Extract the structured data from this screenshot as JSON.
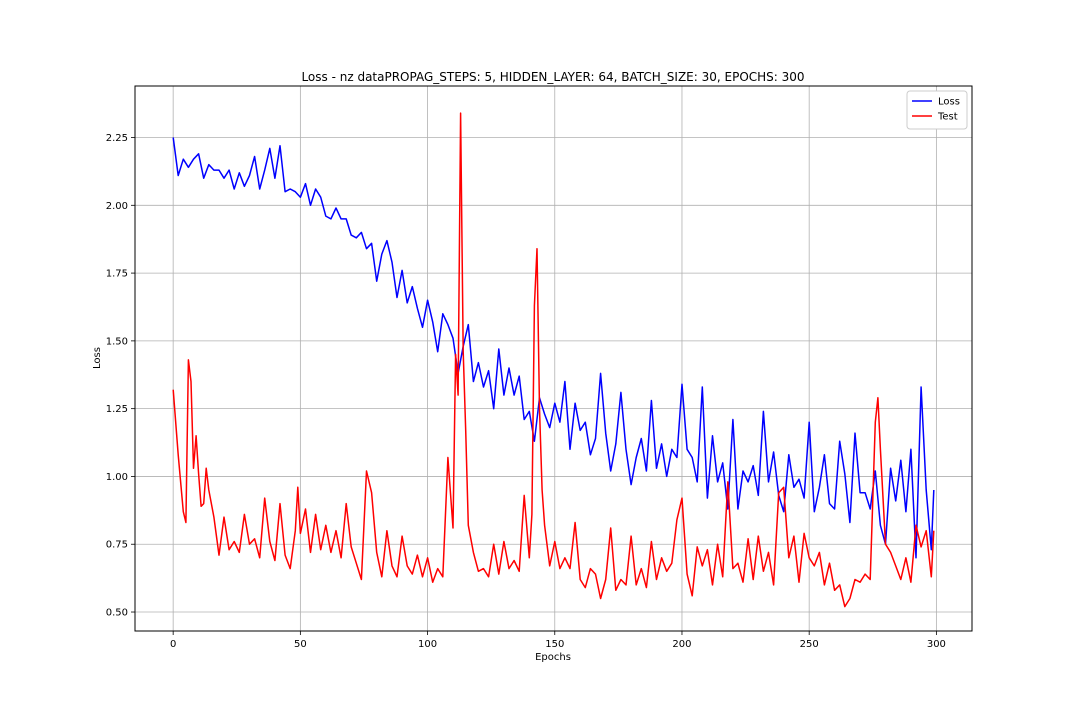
{
  "chart_data": {
    "type": "line",
    "title": "Loss - nz dataPROPAG_STEPS: 5, HIDDEN_LAYER: 64, BATCH_SIZE: 30, EPOCHS: 300",
    "xlabel": "Epochs",
    "ylabel": "Loss",
    "xlim": [
      -15,
      314
    ],
    "ylim": [
      0.43,
      2.44
    ],
    "xticks": [
      0,
      50,
      100,
      150,
      200,
      250,
      300
    ],
    "yticks": [
      0.5,
      0.75,
      1.0,
      1.25,
      1.5,
      1.75,
      2.0,
      2.25
    ],
    "xtick_labels": [
      "0",
      "50",
      "100",
      "150",
      "200",
      "250",
      "300"
    ],
    "ytick_labels": [
      "0.50",
      "0.75",
      "1.00",
      "1.25",
      "1.50",
      "1.75",
      "2.00",
      "2.25"
    ],
    "grid": true,
    "legend_position": "top-right",
    "series": [
      {
        "name": "Loss",
        "color": "#0000ff",
        "points": [
          [
            0,
            2.25
          ],
          [
            2,
            2.11
          ],
          [
            4,
            2.17
          ],
          [
            6,
            2.14
          ],
          [
            8,
            2.17
          ],
          [
            10,
            2.19
          ],
          [
            12,
            2.1
          ],
          [
            14,
            2.15
          ],
          [
            16,
            2.13
          ],
          [
            18,
            2.13
          ],
          [
            20,
            2.1
          ],
          [
            22,
            2.13
          ],
          [
            24,
            2.06
          ],
          [
            26,
            2.12
          ],
          [
            28,
            2.07
          ],
          [
            30,
            2.11
          ],
          [
            32,
            2.18
          ],
          [
            34,
            2.06
          ],
          [
            36,
            2.13
          ],
          [
            38,
            2.21
          ],
          [
            40,
            2.1
          ],
          [
            42,
            2.22
          ],
          [
            44,
            2.05
          ],
          [
            46,
            2.06
          ],
          [
            48,
            2.05
          ],
          [
            50,
            2.03
          ],
          [
            52,
            2.08
          ],
          [
            54,
            2.0
          ],
          [
            56,
            2.06
          ],
          [
            58,
            2.03
          ],
          [
            60,
            1.96
          ],
          [
            62,
            1.95
          ],
          [
            64,
            1.99
          ],
          [
            66,
            1.95
          ],
          [
            68,
            1.95
          ],
          [
            70,
            1.89
          ],
          [
            72,
            1.88
          ],
          [
            74,
            1.9
          ],
          [
            76,
            1.84
          ],
          [
            78,
            1.86
          ],
          [
            80,
            1.72
          ],
          [
            82,
            1.82
          ],
          [
            84,
            1.87
          ],
          [
            86,
            1.79
          ],
          [
            88,
            1.66
          ],
          [
            90,
            1.76
          ],
          [
            92,
            1.64
          ],
          [
            94,
            1.7
          ],
          [
            96,
            1.62
          ],
          [
            98,
            1.55
          ],
          [
            100,
            1.65
          ],
          [
            102,
            1.57
          ],
          [
            104,
            1.46
          ],
          [
            106,
            1.6
          ],
          [
            108,
            1.56
          ],
          [
            110,
            1.51
          ],
          [
            112,
            1.38
          ],
          [
            114,
            1.48
          ],
          [
            116,
            1.56
          ],
          [
            118,
            1.35
          ],
          [
            120,
            1.42
          ],
          [
            122,
            1.33
          ],
          [
            124,
            1.39
          ],
          [
            126,
            1.25
          ],
          [
            128,
            1.47
          ],
          [
            130,
            1.3
          ],
          [
            132,
            1.4
          ],
          [
            134,
            1.3
          ],
          [
            136,
            1.37
          ],
          [
            138,
            1.21
          ],
          [
            140,
            1.24
          ],
          [
            142,
            1.13
          ],
          [
            144,
            1.29
          ],
          [
            146,
            1.23
          ],
          [
            148,
            1.18
          ],
          [
            150,
            1.27
          ],
          [
            152,
            1.2
          ],
          [
            154,
            1.35
          ],
          [
            156,
            1.1
          ],
          [
            158,
            1.27
          ],
          [
            160,
            1.17
          ],
          [
            162,
            1.2
          ],
          [
            164,
            1.08
          ],
          [
            166,
            1.14
          ],
          [
            168,
            1.38
          ],
          [
            170,
            1.16
          ],
          [
            172,
            1.02
          ],
          [
            174,
            1.12
          ],
          [
            176,
            1.31
          ],
          [
            178,
            1.1
          ],
          [
            180,
            0.97
          ],
          [
            182,
            1.07
          ],
          [
            184,
            1.14
          ],
          [
            186,
            1.02
          ],
          [
            188,
            1.28
          ],
          [
            190,
            1.03
          ],
          [
            192,
            1.12
          ],
          [
            194,
            1.0
          ],
          [
            196,
            1.1
          ],
          [
            198,
            1.07
          ],
          [
            200,
            1.34
          ],
          [
            202,
            1.1
          ],
          [
            204,
            1.07
          ],
          [
            206,
            0.98
          ],
          [
            208,
            1.33
          ],
          [
            210,
            0.92
          ],
          [
            212,
            1.15
          ],
          [
            214,
            0.98
          ],
          [
            216,
            1.05
          ],
          [
            218,
            0.88
          ],
          [
            220,
            1.21
          ],
          [
            222,
            0.88
          ],
          [
            224,
            1.02
          ],
          [
            226,
            0.98
          ],
          [
            228,
            1.04
          ],
          [
            230,
            0.93
          ],
          [
            232,
            1.24
          ],
          [
            234,
            0.98
          ],
          [
            236,
            1.09
          ],
          [
            238,
            0.93
          ],
          [
            240,
            0.87
          ],
          [
            242,
            1.08
          ],
          [
            244,
            0.96
          ],
          [
            246,
            0.99
          ],
          [
            248,
            0.92
          ],
          [
            250,
            1.2
          ],
          [
            252,
            0.87
          ],
          [
            254,
            0.96
          ],
          [
            256,
            1.08
          ],
          [
            258,
            0.9
          ],
          [
            260,
            0.88
          ],
          [
            262,
            1.13
          ],
          [
            264,
            1.01
          ],
          [
            266,
            0.83
          ],
          [
            268,
            1.16
          ],
          [
            270,
            0.94
          ],
          [
            272,
            0.94
          ],
          [
            274,
            0.88
          ],
          [
            276,
            1.02
          ],
          [
            278,
            0.82
          ],
          [
            280,
            0.75
          ],
          [
            282,
            1.03
          ],
          [
            284,
            0.91
          ],
          [
            286,
            1.06
          ],
          [
            288,
            0.87
          ],
          [
            290,
            1.1
          ],
          [
            292,
            0.7
          ],
          [
            294,
            1.33
          ],
          [
            296,
            0.95
          ],
          [
            298,
            0.73
          ],
          [
            299,
            0.95
          ]
        ]
      },
      {
        "name": "Test",
        "color": "#ff0000",
        "points": [
          [
            0,
            1.32
          ],
          [
            2,
            1.08
          ],
          [
            4,
            0.87
          ],
          [
            5,
            0.83
          ],
          [
            6,
            1.43
          ],
          [
            7,
            1.35
          ],
          [
            8,
            1.03
          ],
          [
            9,
            1.15
          ],
          [
            10,
            1.01
          ],
          [
            11,
            0.89
          ],
          [
            12,
            0.9
          ],
          [
            13,
            1.03
          ],
          [
            14,
            0.95
          ],
          [
            16,
            0.85
          ],
          [
            18,
            0.71
          ],
          [
            20,
            0.85
          ],
          [
            22,
            0.73
          ],
          [
            24,
            0.76
          ],
          [
            26,
            0.72
          ],
          [
            28,
            0.86
          ],
          [
            30,
            0.75
          ],
          [
            32,
            0.77
          ],
          [
            34,
            0.7
          ],
          [
            36,
            0.92
          ],
          [
            38,
            0.76
          ],
          [
            40,
            0.69
          ],
          [
            42,
            0.9
          ],
          [
            44,
            0.71
          ],
          [
            46,
            0.66
          ],
          [
            48,
            0.8
          ],
          [
            49,
            0.96
          ],
          [
            50,
            0.79
          ],
          [
            52,
            0.88
          ],
          [
            54,
            0.72
          ],
          [
            56,
            0.86
          ],
          [
            58,
            0.73
          ],
          [
            60,
            0.82
          ],
          [
            62,
            0.72
          ],
          [
            64,
            0.8
          ],
          [
            66,
            0.7
          ],
          [
            68,
            0.9
          ],
          [
            70,
            0.74
          ],
          [
            72,
            0.68
          ],
          [
            74,
            0.62
          ],
          [
            76,
            1.02
          ],
          [
            78,
            0.94
          ],
          [
            80,
            0.72
          ],
          [
            82,
            0.63
          ],
          [
            84,
            0.8
          ],
          [
            86,
            0.67
          ],
          [
            88,
            0.63
          ],
          [
            90,
            0.78
          ],
          [
            92,
            0.67
          ],
          [
            94,
            0.64
          ],
          [
            96,
            0.71
          ],
          [
            98,
            0.63
          ],
          [
            100,
            0.7
          ],
          [
            102,
            0.61
          ],
          [
            104,
            0.66
          ],
          [
            106,
            0.63
          ],
          [
            108,
            1.07
          ],
          [
            110,
            0.81
          ],
          [
            111,
            1.45
          ],
          [
            112,
            1.3
          ],
          [
            113,
            2.34
          ],
          [
            114,
            1.46
          ],
          [
            115,
            1.17
          ],
          [
            116,
            0.82
          ],
          [
            118,
            0.72
          ],
          [
            120,
            0.65
          ],
          [
            122,
            0.66
          ],
          [
            124,
            0.63
          ],
          [
            126,
            0.75
          ],
          [
            128,
            0.64
          ],
          [
            130,
            0.76
          ],
          [
            132,
            0.66
          ],
          [
            134,
            0.69
          ],
          [
            136,
            0.65
          ],
          [
            138,
            0.93
          ],
          [
            140,
            0.7
          ],
          [
            141,
            0.86
          ],
          [
            142,
            1.63
          ],
          [
            143,
            1.84
          ],
          [
            144,
            1.25
          ],
          [
            145,
            0.95
          ],
          [
            146,
            0.82
          ],
          [
            148,
            0.67
          ],
          [
            150,
            0.76
          ],
          [
            152,
            0.66
          ],
          [
            154,
            0.7
          ],
          [
            156,
            0.66
          ],
          [
            158,
            0.83
          ],
          [
            160,
            0.62
          ],
          [
            162,
            0.59
          ],
          [
            164,
            0.66
          ],
          [
            166,
            0.64
          ],
          [
            168,
            0.55
          ],
          [
            170,
            0.62
          ],
          [
            172,
            0.81
          ],
          [
            174,
            0.58
          ],
          [
            176,
            0.62
          ],
          [
            178,
            0.6
          ],
          [
            180,
            0.78
          ],
          [
            182,
            0.6
          ],
          [
            184,
            0.66
          ],
          [
            186,
            0.59
          ],
          [
            188,
            0.76
          ],
          [
            190,
            0.62
          ],
          [
            192,
            0.7
          ],
          [
            194,
            0.65
          ],
          [
            196,
            0.68
          ],
          [
            198,
            0.84
          ],
          [
            200,
            0.92
          ],
          [
            202,
            0.64
          ],
          [
            204,
            0.56
          ],
          [
            206,
            0.74
          ],
          [
            208,
            0.67
          ],
          [
            210,
            0.73
          ],
          [
            212,
            0.6
          ],
          [
            214,
            0.75
          ],
          [
            216,
            0.63
          ],
          [
            218,
            0.98
          ],
          [
            220,
            0.66
          ],
          [
            222,
            0.68
          ],
          [
            224,
            0.61
          ],
          [
            226,
            0.77
          ],
          [
            228,
            0.62
          ],
          [
            230,
            0.78
          ],
          [
            232,
            0.65
          ],
          [
            234,
            0.72
          ],
          [
            236,
            0.6
          ],
          [
            238,
            0.94
          ],
          [
            240,
            0.96
          ],
          [
            242,
            0.7
          ],
          [
            244,
            0.78
          ],
          [
            246,
            0.61
          ],
          [
            248,
            0.79
          ],
          [
            250,
            0.7
          ],
          [
            252,
            0.67
          ],
          [
            254,
            0.72
          ],
          [
            256,
            0.6
          ],
          [
            258,
            0.68
          ],
          [
            260,
            0.58
          ],
          [
            262,
            0.6
          ],
          [
            264,
            0.52
          ],
          [
            266,
            0.55
          ],
          [
            268,
            0.62
          ],
          [
            270,
            0.61
          ],
          [
            272,
            0.64
          ],
          [
            274,
            0.62
          ],
          [
            276,
            1.2
          ],
          [
            277,
            1.29
          ],
          [
            278,
            1.1
          ],
          [
            280,
            0.75
          ],
          [
            282,
            0.72
          ],
          [
            284,
            0.67
          ],
          [
            286,
            0.62
          ],
          [
            288,
            0.7
          ],
          [
            290,
            0.61
          ],
          [
            292,
            0.82
          ],
          [
            294,
            0.74
          ],
          [
            296,
            0.8
          ],
          [
            298,
            0.63
          ],
          [
            299,
            0.8
          ]
        ]
      }
    ]
  }
}
